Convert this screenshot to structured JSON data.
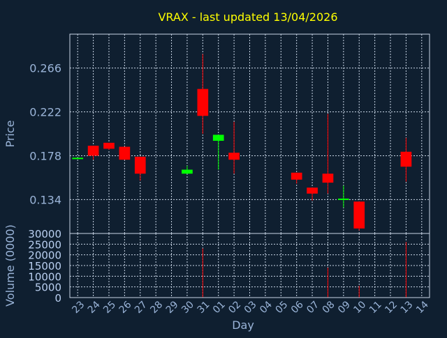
{
  "chart_data": {
    "type": "candlestick",
    "title": "VRAX - last updated 13/04/2026",
    "xlabel": "Day",
    "price_panel": {
      "ylabel": "Price",
      "yticks": [
        0.134,
        0.178,
        0.222,
        0.266
      ],
      "ytick_labels": [
        "0.134",
        "0.178",
        "0.222",
        "0.266"
      ],
      "ylim": [
        0.1,
        0.3
      ],
      "grid": true
    },
    "volume_panel": {
      "ylabel": "Volume (0000)",
      "yticks": [
        0,
        5000,
        10000,
        15000,
        20000,
        25000,
        30000
      ],
      "ytick_labels": [
        "0",
        "5000",
        "10000",
        "15000",
        "20000",
        "25000",
        "30000"
      ],
      "ylim": [
        0,
        30000
      ],
      "grid": true
    },
    "categories": [
      "23",
      "24",
      "25",
      "26",
      "27",
      "28",
      "29",
      "30",
      "31",
      "01",
      "02",
      "03",
      "04",
      "05",
      "06",
      "07",
      "08",
      "09",
      "10",
      "11",
      "12",
      "13",
      "14"
    ],
    "colors": {
      "up": "#00ff00",
      "down": "#ff0000",
      "title": "#ffff00",
      "axis_text": "#9ab4d8",
      "background": "#0f1f30"
    },
    "candles": [
      {
        "x": "23",
        "open": 0.176,
        "high": 0.176,
        "low": 0.176,
        "close": 0.176,
        "volume": 0
      },
      {
        "x": "24",
        "open": 0.188,
        "high": 0.188,
        "low": 0.174,
        "close": 0.178,
        "volume": 0
      },
      {
        "x": "25",
        "open": 0.191,
        "high": 0.191,
        "low": 0.184,
        "close": 0.185,
        "volume": 0
      },
      {
        "x": "26",
        "open": 0.187,
        "high": 0.187,
        "low": 0.174,
        "close": 0.174,
        "volume": 0
      },
      {
        "x": "27",
        "open": 0.177,
        "high": 0.177,
        "low": 0.153,
        "close": 0.16,
        "volume": 0
      },
      {
        "x": "30",
        "open": 0.16,
        "high": 0.168,
        "low": 0.16,
        "close": 0.164,
        "volume": 0
      },
      {
        "x": "31",
        "open": 0.245,
        "high": 0.28,
        "low": 0.2,
        "close": 0.218,
        "volume": 23000
      },
      {
        "x": "01",
        "open": 0.193,
        "high": 0.199,
        "low": 0.164,
        "close": 0.199,
        "volume": 0
      },
      {
        "x": "02",
        "open": 0.181,
        "high": 0.212,
        "low": 0.16,
        "close": 0.174,
        "volume": 0
      },
      {
        "x": "06",
        "open": 0.161,
        "high": 0.161,
        "low": 0.15,
        "close": 0.154,
        "volume": 0
      },
      {
        "x": "07",
        "open": 0.146,
        "high": 0.146,
        "low": 0.133,
        "close": 0.14,
        "volume": 0
      },
      {
        "x": "08",
        "open": 0.16,
        "high": 0.22,
        "low": 0.14,
        "close": 0.151,
        "volume": 14000
      },
      {
        "x": "09",
        "open": 0.134,
        "high": 0.148,
        "low": 0.126,
        "close": 0.135,
        "volume": 0
      },
      {
        "x": "10",
        "open": 0.132,
        "high": 0.132,
        "low": 0.103,
        "close": 0.105,
        "volume": 5500
      },
      {
        "x": "13",
        "open": 0.182,
        "high": 0.196,
        "low": 0.152,
        "close": 0.167,
        "volume": 26000
      }
    ]
  }
}
